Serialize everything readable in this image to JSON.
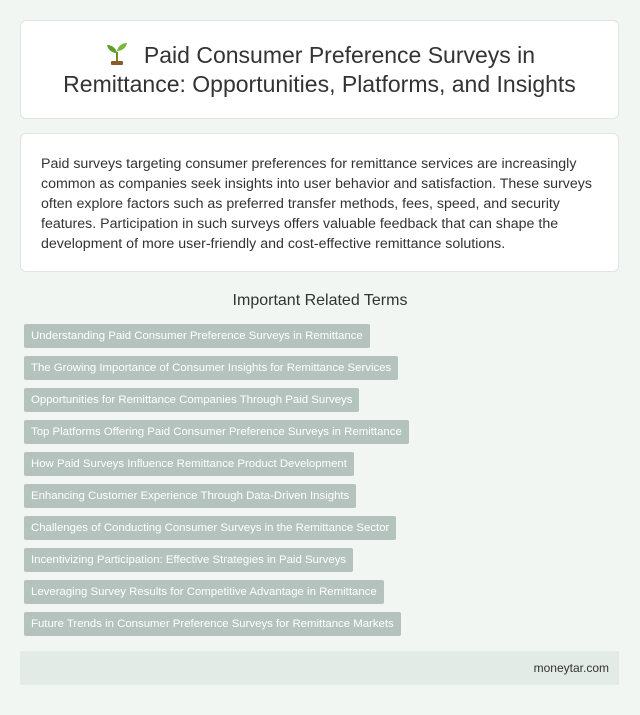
{
  "header": {
    "icon": "sprout-icon",
    "title": "Paid Consumer Preference Surveys in Remittance: Opportunities, Platforms, and Insights"
  },
  "summary": {
    "text": "Paid surveys targeting consumer preferences for remittance services are increasingly common as companies seek insights into user behavior and satisfaction. These surveys often explore factors such as preferred transfer methods, fees, speed, and security features. Participation in such surveys offers valuable feedback that can shape the development of more user-friendly and cost-effective remittance solutions."
  },
  "related": {
    "heading": "Important Related Terms",
    "items": [
      "Understanding Paid Consumer Preference Surveys in Remittance",
      "The Growing Importance of Consumer Insights for Remittance Services",
      "Opportunities for Remittance Companies Through Paid Surveys",
      "Top Platforms Offering Paid Consumer Preference Surveys in Remittance",
      "How Paid Surveys Influence Remittance Product Development",
      "Enhancing Customer Experience Through Data-Driven Insights",
      "Challenges of Conducting Consumer Surveys in the Remittance Sector",
      "Incentivizing Participation: Effective Strategies in Paid Surveys",
      "Leveraging Survey Results for Competitive Advantage in Remittance",
      "Future Trends in Consumer Preference Surveys for Remittance Markets"
    ]
  },
  "footer": {
    "site": "moneytar.com"
  },
  "colors": {
    "background": "#f1f6f3",
    "card": "#ffffff",
    "tag": "#b4c3bd",
    "footer": "#e2ebe6"
  }
}
